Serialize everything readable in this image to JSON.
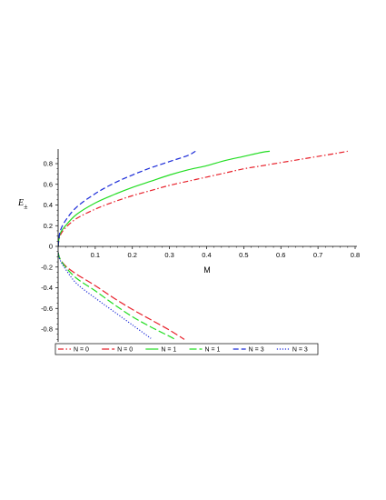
{
  "chart_data": {
    "type": "line",
    "title": "",
    "xlabel": "M",
    "ylabel_main": "E",
    "ylabel_sub": "±",
    "xlim": [
      0,
      0.8
    ],
    "ylim": [
      -0.9,
      0.9
    ],
    "xticks": [
      0.1,
      0.2,
      0.3,
      0.4,
      0.5,
      0.6,
      0.7,
      0.8
    ],
    "xtick_labels": [
      "0.1",
      "0.2",
      "0.3",
      "0.4",
      "0.5",
      "0.6",
      "0.7",
      "0.8"
    ],
    "yticks": [
      0.8,
      0.6,
      0.4,
      0.2,
      0,
      -0.2,
      -0.4,
      -0.6,
      -0.8
    ],
    "ytick_labels": [
      "0.8",
      "0.6",
      "0.4",
      "0.2",
      "0",
      "-0.2",
      "-0.4",
      "-0.6",
      "-0.8"
    ],
    "grid": false,
    "legend_position": "bottom",
    "series": [
      {
        "name": "N = 0",
        "color": "#e8202a",
        "style": "dashdot",
        "x": [
          0,
          0.005,
          0.02,
          0.05,
          0.1,
          0.15,
          0.2,
          0.25,
          0.3,
          0.35,
          0.4,
          0.45,
          0.5,
          0.55,
          0.6,
          0.65,
          0.7,
          0.75,
          0.78
        ],
        "y": [
          0,
          0.1,
          0.18,
          0.27,
          0.36,
          0.43,
          0.49,
          0.54,
          0.59,
          0.63,
          0.67,
          0.71,
          0.75,
          0.78,
          0.81,
          0.84,
          0.87,
          0.9,
          0.92
        ]
      },
      {
        "name": "N = 0",
        "color": "#e8202a",
        "style": "longdash",
        "x": [
          0,
          0.005,
          0.02,
          0.05,
          0.1,
          0.15,
          0.2,
          0.25,
          0.3,
          0.34
        ],
        "y": [
          -0.06,
          -0.12,
          -0.19,
          -0.27,
          -0.38,
          -0.5,
          -0.61,
          -0.71,
          -0.81,
          -0.9
        ]
      },
      {
        "name": "N = 1",
        "color": "#22dd22",
        "style": "solid",
        "x": [
          0,
          0.005,
          0.02,
          0.05,
          0.1,
          0.15,
          0.2,
          0.25,
          0.3,
          0.35,
          0.4,
          0.45,
          0.5,
          0.55,
          0.57
        ],
        "y": [
          0,
          0.12,
          0.2,
          0.31,
          0.42,
          0.5,
          0.57,
          0.63,
          0.69,
          0.74,
          0.78,
          0.83,
          0.87,
          0.91,
          0.92
        ]
      },
      {
        "name": "N = 1",
        "color": "#22dd22",
        "style": "longdash",
        "x": [
          0,
          0.005,
          0.02,
          0.05,
          0.1,
          0.15,
          0.2,
          0.25,
          0.3,
          0.315
        ],
        "y": [
          -0.06,
          -0.12,
          -0.2,
          -0.31,
          -0.43,
          -0.56,
          -0.68,
          -0.78,
          -0.87,
          -0.9
        ]
      },
      {
        "name": "N = 3",
        "color": "#1a2ad8",
        "style": "dashed",
        "x": [
          0,
          0.005,
          0.02,
          0.05,
          0.1,
          0.15,
          0.2,
          0.25,
          0.3,
          0.35,
          0.37
        ],
        "y": [
          0,
          0.14,
          0.25,
          0.38,
          0.51,
          0.61,
          0.69,
          0.76,
          0.82,
          0.88,
          0.92
        ]
      },
      {
        "name": "N = 3",
        "color": "#1a2ad8",
        "style": "dotted",
        "x": [
          0,
          0.005,
          0.02,
          0.05,
          0.1,
          0.15,
          0.2,
          0.25
        ],
        "y": [
          -0.06,
          -0.13,
          -0.22,
          -0.36,
          -0.5,
          -0.63,
          -0.76,
          -0.89
        ]
      }
    ]
  }
}
